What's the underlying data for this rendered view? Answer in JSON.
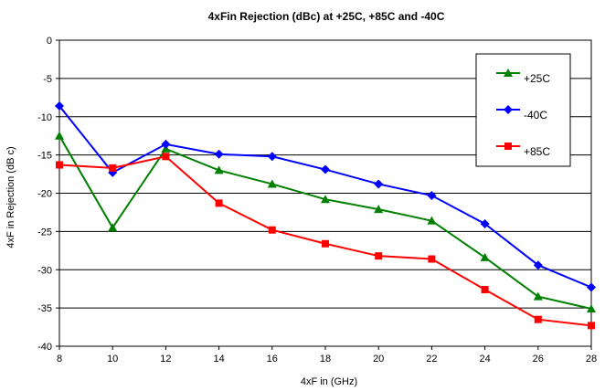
{
  "chart_data": {
    "type": "line",
    "title": "4xFin Rejection (dBc)  at +25C, +85C and -40C",
    "xlabel": "4xF in (GHz)",
    "ylabel": "4xF in Rejection (dB c)",
    "x": [
      8,
      10,
      12,
      14,
      16,
      18,
      20,
      22,
      24,
      26,
      28
    ],
    "xlim": [
      8,
      28
    ],
    "ylim": [
      -40,
      0
    ],
    "x_ticks": [
      8,
      10,
      12,
      14,
      16,
      18,
      20,
      22,
      24,
      26,
      28
    ],
    "y_ticks": [
      0,
      -5,
      -10,
      -15,
      -20,
      -25,
      -30,
      -35,
      -40
    ],
    "grid": "horizontal",
    "legend_position": "top-right",
    "series": [
      {
        "name": "+25C",
        "color": "#008000",
        "marker": "triangle",
        "values": [
          -12.5,
          -24.5,
          -14.2,
          -17.0,
          -18.8,
          -20.8,
          -22.1,
          -23.6,
          -28.4,
          -33.5,
          -35.1
        ]
      },
      {
        "name": "-40C",
        "color": "#0000ff",
        "marker": "diamond",
        "values": [
          -8.6,
          -17.3,
          -13.6,
          -14.9,
          -15.2,
          -16.9,
          -18.8,
          -20.3,
          -24.0,
          -29.4,
          -32.3
        ]
      },
      {
        "name": "+85C",
        "color": "#ff0000",
        "marker": "square",
        "values": [
          -16.3,
          -16.7,
          -15.2,
          -21.3,
          -24.8,
          -26.6,
          -28.2,
          -28.6,
          -32.6,
          -36.5,
          -37.3
        ]
      }
    ]
  }
}
